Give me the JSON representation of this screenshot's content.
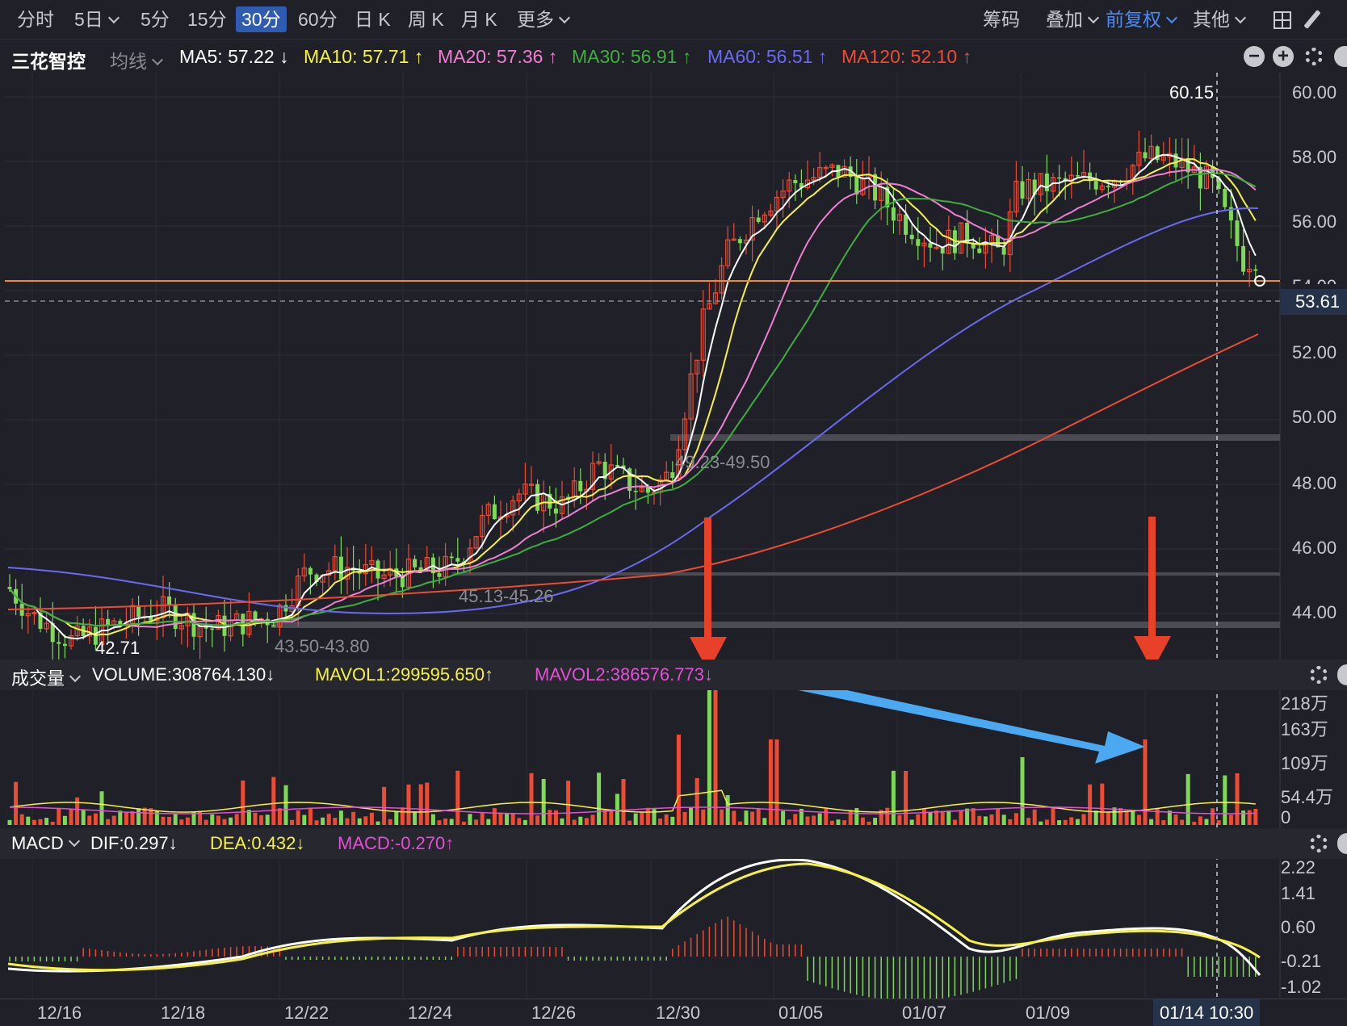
{
  "toolbar": {
    "periods": [
      "分时",
      "5日",
      "5分",
      "15分",
      "30分",
      "60分",
      "日 K",
      "周 K",
      "月 K",
      "更多"
    ],
    "active_period": "30分",
    "right": {
      "chips": "筹码",
      "overlay": "叠加",
      "adjust": "前复权",
      "other": "其他"
    }
  },
  "stock": {
    "name": "三花智控",
    "ma_type": "均线",
    "ma": [
      {
        "label": "MA5: 57.22 ↓",
        "color": "#ffffff"
      },
      {
        "label": "MA10: 57.71 ↑",
        "color": "#f5f244"
      },
      {
        "label": "MA20: 57.36 ↑",
        "color": "#f07fd3"
      },
      {
        "label": "MA30: 56.91 ↑",
        "color": "#3fae3f"
      },
      {
        "label": "MA60: 56.51 ↑",
        "color": "#6a6af0"
      },
      {
        "label": "MA120: 52.10 ↑",
        "color": "#ee4b33"
      }
    ]
  },
  "price_axis": [
    "60.00",
    "58.00",
    "56.00",
    "54.00",
    "52.00",
    "50.00",
    "48.00",
    "46.00",
    "44.00"
  ],
  "current_price": "53.61",
  "annotations": {
    "high": "60.15",
    "low": "42.71",
    "zone1": "49.23-49.50",
    "zone2": "45.13-45.26",
    "zone3": "43.50-43.80"
  },
  "volume": {
    "title": "成交量",
    "volume": "VOLUME:308764.130↓",
    "mavol1": "MAVOL1:299595.650↑",
    "mavol2": "MAVOL2:386576.773↓",
    "axis": [
      "218万",
      "163万",
      "109万",
      "54.4万",
      "0"
    ]
  },
  "macd": {
    "title": "MACD",
    "dif": "DIF:0.297↓",
    "dea": "DEA:0.432↓",
    "macd": "MACD:-0.270↑",
    "axis": [
      "2.22",
      "1.41",
      "0.60",
      "-0.21",
      "-1.02"
    ]
  },
  "dates": [
    "12/16",
    "12/18",
    "12/22",
    "12/24",
    "12/26",
    "12/30",
    "01/05",
    "01/07",
    "01/09"
  ],
  "cursor_date": "01/14 10:30",
  "colors": {
    "up": "#ee4b33",
    "down": "#7ed957",
    "accent": "#2f5cb1",
    "arrow_red": "#e8412a",
    "arrow_blue": "#4aa9f0"
  }
}
